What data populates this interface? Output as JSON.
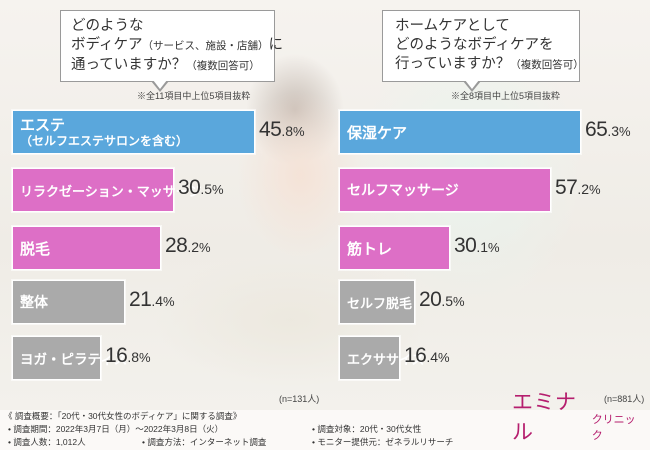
{
  "left_panel": {
    "question_lines": [
      "どのような",
      "ボディケア",
      "通っていますか？"
    ],
    "question_line2_paren": "（サービス、施設・店舗）",
    "question_line2_tail": "に",
    "question_line3_paren": "（複数回答可）",
    "subnote": "※全11項目中上位5項目抜粋",
    "n_label": "(n=131人)"
  },
  "right_panel": {
    "question_lines": [
      "ホームケアとして",
      "どのようなボディケアを",
      "行っていますか？"
    ],
    "question_line3_paren": "（複数回答可）",
    "subnote": "※全8項目中上位5項目抜粋",
    "n_label": "(n=881人)"
  },
  "chart_data": [
    {
      "type": "bar",
      "orientation": "horizontal",
      "categories": [
        "エステ（セルフエステサロンを含む）",
        "リラクゼーション・マッサージ",
        "脱毛",
        "整体",
        "ヨガ・ピラティス"
      ],
      "labels": [
        [
          "エステ",
          "（セルフエステサロンを含む）"
        ],
        [
          "リラクゼーション・マッサージ"
        ],
        [
          "脱毛"
        ],
        [
          "整体"
        ],
        [
          "ヨガ・ピラティス"
        ]
      ],
      "values": [
        45.8,
        30.5,
        28.2,
        21.4,
        16.8
      ],
      "value_labels": [
        [
          "45",
          ".8",
          "%"
        ],
        [
          "30",
          ".5",
          "%"
        ],
        [
          "28",
          ".2",
          "%"
        ],
        [
          "21",
          ".4",
          "%"
        ],
        [
          "16",
          ".8",
          "%"
        ]
      ],
      "colors": [
        "#5aa7dc",
        "#dd6fc6",
        "#dd6fc6",
        "#aaaaaa",
        "#aaaaaa"
      ],
      "xlim": [
        0,
        100
      ]
    },
    {
      "type": "bar",
      "orientation": "horizontal",
      "categories": [
        "保湿ケア",
        "セルフマッサージ",
        "筋トレ",
        "セルフ脱毛",
        "エクササイズ"
      ],
      "labels": [
        [
          "保湿ケア"
        ],
        [
          "セルフマッサージ"
        ],
        [
          "筋トレ"
        ],
        [
          "セルフ脱毛"
        ],
        [
          "エクササイズ"
        ]
      ],
      "values": [
        65.3,
        57.2,
        30.1,
        20.5,
        16.4
      ],
      "value_labels": [
        [
          "65",
          ".3",
          "%"
        ],
        [
          "57",
          ".2",
          "%"
        ],
        [
          "30",
          ".1",
          "%"
        ],
        [
          "20",
          ".5",
          "%"
        ],
        [
          "16",
          ".4",
          "%"
        ]
      ],
      "colors": [
        "#5aa7dc",
        "#dd6fc6",
        "#dd6fc6",
        "#aaaaaa",
        "#aaaaaa"
      ],
      "xlim": [
        0,
        100
      ]
    }
  ],
  "footer": {
    "overview": "《 調査概要：「20代・30代女性のボディケア」に関する調査》",
    "period": "• 調査期間：2022年3月7日（月）～2022年3月8日（火）",
    "target": "• 調査対象：20代・30代女性",
    "count": "• 調査人数：1,012人",
    "method": "• 調査方法：インターネット調査",
    "provider": "• モニター提供元：ゼネラルリサーチ"
  },
  "logo": {
    "main": "エミナル",
    "sub": "クリニック"
  }
}
